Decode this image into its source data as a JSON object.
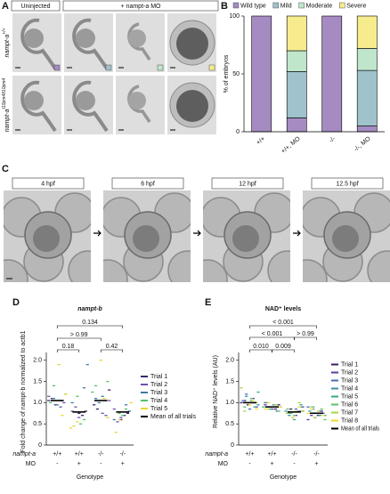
{
  "panel_A": {
    "label": "A",
    "headers": [
      "Uninjected",
      "+ nampt-a MO"
    ],
    "rows": [
      {
        "gene": "nampt-a",
        "genotype": "+/+"
      },
      {
        "gene": "nampt-a",
        "genotype": "t10pm4/t10pm4"
      }
    ]
  },
  "panel_C": {
    "label": "C",
    "stages": [
      "4 hpf",
      "6 hpf",
      "12 hpf",
      "12.5 hpf"
    ]
  },
  "chart_data": [
    {
      "type": "stacked_bar",
      "panel": "B",
      "ylabel": "% of embryos",
      "categories": [
        "+/+",
        "+/+, MO",
        "-/-",
        "-/-, MO"
      ],
      "series": [
        {
          "name": "Wild type",
          "color": "#a58bc2",
          "values": [
            100,
            12,
            100,
            5
          ]
        },
        {
          "name": "Mild",
          "color": "#9fc2cc",
          "values": [
            0,
            40,
            0,
            48
          ]
        },
        {
          "name": "Moderate",
          "color": "#bfe6cb",
          "values": [
            0,
            18,
            0,
            19
          ]
        },
        {
          "name": "Severe",
          "color": "#f6ec8e",
          "values": [
            0,
            30,
            0,
            28
          ]
        }
      ],
      "ylim": [
        0,
        100
      ],
      "yticks": [
        0,
        50,
        100
      ],
      "legend": "top"
    },
    {
      "type": "strip",
      "panel": "D",
      "title": "nampt-b",
      "ylabel": "Fold change of nampt-b normalized to actb1",
      "xlabel": "Genotype",
      "x_rows": [
        {
          "label": "nampt-a",
          "values": [
            "+/+",
            "+/+",
            "-/-",
            "-/-"
          ]
        },
        {
          "label": "MO",
          "values": [
            "-",
            "+",
            "-",
            "+"
          ]
        }
      ],
      "ylim": [
        0,
        2.1
      ],
      "yticks": [
        0,
        {
          "value": 0.5,
          "label": "0.5"
        },
        {
          "value": 1,
          "label": "1.0"
        },
        {
          "value": 1.5,
          "label": "1.5"
        },
        {
          "value": 2,
          "label": "2.0"
        }
      ],
      "annotations": [
        "0.134",
        "> 0.99",
        "0.18",
        "0.42"
      ],
      "series": [
        {
          "name": "Trial 1",
          "color": "#3f2470",
          "values": [
            [
              1.05,
              1.1,
              0.95
            ],
            [
              0.75,
              0.7,
              0.8
            ],
            [
              1.3,
              0.95,
              0.85
            ],
            [
              0.6,
              0.7,
              0.75
            ]
          ]
        },
        {
          "name": "Trial 2",
          "color": "#6a50b2",
          "values": [
            [
              0.9,
              1.0,
              1.15
            ],
            [
              0.8,
              0.9,
              0.65
            ],
            [
              0.75,
              0.7,
              1.05
            ],
            [
              0.85,
              0.55,
              0.65
            ]
          ]
        },
        {
          "name": "Trial 3",
          "color": "#3a7ca2",
          "values": [
            [
              1.1,
              0.95,
              1.05
            ],
            [
              1.35,
              1.9,
              1.0
            ],
            [
              1.1,
              1.0,
              1.15
            ],
            [
              0.95,
              0.8,
              0.6
            ]
          ]
        },
        {
          "name": "Trial 4",
          "color": "#57c06a",
          "values": [
            [
              1.2,
              1.0,
              1.4
            ],
            [
              1.15,
              0.5,
              0.6
            ],
            [
              1.5,
              1.25,
              1.4
            ],
            [
              0.75,
              0.7,
              0.85
            ]
          ]
        },
        {
          "name": "Trial 5",
          "color": "#e8d72e",
          "values": [
            [
              1.9,
              0.7,
              1.2
            ],
            [
              0.4,
              0.45,
              0.55
            ],
            [
              2.0,
              1.1,
              0.65
            ],
            [
              1.0,
              0.3,
              0.6
            ]
          ]
        }
      ],
      "mean": {
        "name": "Mean of all trials",
        "color": "#000000",
        "values": [
          1.05,
          0.78,
          1.05,
          0.78
        ]
      }
    },
    {
      "type": "strip",
      "panel": "E",
      "title": "NAD⁺ levels",
      "ylabel": "Relative NAD⁺ levels (AU)",
      "xlabel": "Genotype",
      "x_rows": [
        {
          "label": "nampt-a",
          "values": [
            "+/+",
            "+/+",
            "-/-",
            "-/-"
          ]
        },
        {
          "label": "MO",
          "values": [
            "-",
            "+",
            "-",
            "+"
          ]
        }
      ],
      "ylim": [
        0,
        2.1
      ],
      "yticks": [
        0,
        {
          "value": 0.5,
          "label": "0.5"
        },
        {
          "value": 1,
          "label": "1.0"
        },
        {
          "value": 1.5,
          "label": "1.5"
        },
        {
          "value": 2,
          "label": "2.0"
        }
      ],
      "annotations": [
        "< 0.001",
        "< 0.001",
        "> 0.99",
        "0.010",
        "0.009"
      ],
      "series": [
        {
          "name": "Trial 1",
          "color": "#3b1d66",
          "values": [
            [
              1.0,
              1.05,
              0.95
            ],
            [
              0.9,
              0.85,
              0.95
            ],
            [
              0.8,
              0.75,
              0.85
            ],
            [
              0.75,
              0.7,
              0.8
            ]
          ]
        },
        {
          "name": "Trial 2",
          "color": "#5b3c9e",
          "values": [
            [
              1.1,
              0.9,
              1.0
            ],
            [
              0.95,
              0.9,
              0.85
            ],
            [
              0.7,
              0.8,
              0.9
            ],
            [
              0.6,
              0.7,
              0.65
            ]
          ]
        },
        {
          "name": "Trial 3",
          "color": "#4a6db0",
          "values": [
            [
              1.2,
              0.85,
              1.0
            ],
            [
              0.8,
              0.9,
              1.0
            ],
            [
              0.75,
              0.65,
              0.85
            ],
            [
              0.8,
              0.75,
              0.9
            ]
          ]
        },
        {
          "name": "Trial 4",
          "color": "#3d8fa8",
          "values": [
            [
              0.95,
              1.05,
              1.15
            ],
            [
              0.85,
              0.95,
              0.9
            ],
            [
              0.9,
              0.8,
              0.7
            ],
            [
              0.85,
              0.75,
              0.7
            ]
          ]
        },
        {
          "name": "Trial 5",
          "color": "#35a58c",
          "values": [
            [
              1.05,
              0.9,
              1.25
            ],
            [
              0.9,
              1.0,
              0.85
            ],
            [
              0.6,
              0.8,
              0.95
            ],
            [
              0.7,
              0.8,
              0.9
            ]
          ]
        },
        {
          "name": "Trial 6",
          "color": "#5cc16a",
          "values": [
            [
              0.9,
              1.0,
              1.1
            ],
            [
              0.95,
              0.8,
              0.9
            ],
            [
              0.85,
              0.75,
              0.7
            ],
            [
              0.75,
              0.85,
              0.6
            ]
          ]
        },
        {
          "name": "Trial 7",
          "color": "#a8d548",
          "values": [
            [
              1.0,
              1.35,
              0.8
            ],
            [
              0.85,
              0.9,
              0.95
            ],
            [
              1.0,
              0.8,
              0.75
            ],
            [
              0.9,
              0.65,
              0.8
            ]
          ]
        },
        {
          "name": "Trial 8",
          "color": "#f0dc2a",
          "values": [
            [
              0.95,
              1.05,
              0.85
            ],
            [
              0.9,
              0.85,
              1.0
            ],
            [
              0.65,
              0.8,
              0.9
            ],
            [
              0.7,
              0.75,
              0.85
            ]
          ]
        }
      ],
      "mean": {
        "name": "Mean of all trials",
        "color": "#000000",
        "values": [
          1.0,
          0.9,
          0.78,
          0.75
        ]
      }
    }
  ]
}
